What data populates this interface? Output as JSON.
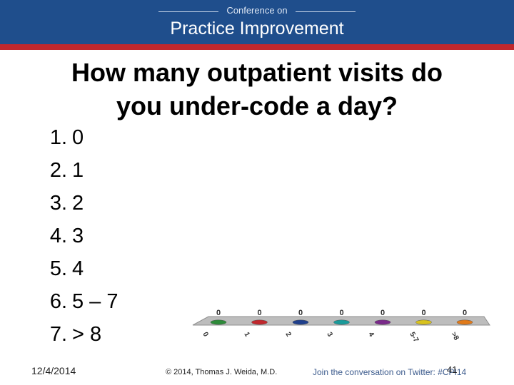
{
  "banner": {
    "small_title": "Conference on",
    "main_title": "Practice Improvement"
  },
  "slide": {
    "title_line1": "How many outpatient visits do",
    "title_line2": "you under-code a day?"
  },
  "options": [
    {
      "num": "1.",
      "label": "0"
    },
    {
      "num": "2.",
      "label": "1"
    },
    {
      "num": "3.",
      "label": "2"
    },
    {
      "num": "4.",
      "label": "3"
    },
    {
      "num": "5.",
      "label": "4"
    },
    {
      "num": "6.",
      "label": "5 – 7"
    },
    {
      "num": "7.",
      "label": "> 8"
    }
  ],
  "chart_data": {
    "type": "bar",
    "categories": [
      "0",
      "1",
      "2",
      "3",
      "4",
      "5-7",
      ">8"
    ],
    "values": [
      0,
      0,
      0,
      0,
      0,
      0,
      0
    ],
    "colors": [
      "#2e8b3a",
      "#c0282d",
      "#1f3f8c",
      "#1a9a9a",
      "#7a2a8a",
      "#d8c21e",
      "#e07a1a"
    ],
    "title": "",
    "xlabel": "",
    "ylabel": ""
  },
  "footer": {
    "date": "12/4/2014",
    "copyright": "© 2014, Thomas J. Weida, M.D.",
    "twitter": "Join the conversation on Twitter: #CPI14",
    "page": "41"
  }
}
